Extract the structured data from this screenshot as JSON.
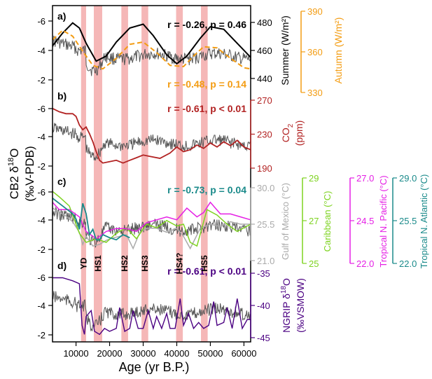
{
  "chart_data": {
    "type": "line",
    "x_axis": {
      "label": "Age (yr B.P.)",
      "range": [
        3000,
        62000
      ],
      "ticks": [
        10000,
        20000,
        30000,
        40000,
        50000,
        60000
      ],
      "tick_labels": [
        "10000",
        "20000",
        "30000",
        "40000",
        "50000",
        "60000"
      ]
    },
    "left_axis": {
      "label_main": "CB2 δ",
      "label_sup": "18",
      "label_end": "O",
      "label_line2": "(‰V-PDB)",
      "tick_labels": [
        "-6",
        "-4",
        "-2"
      ]
    },
    "shaded_events": [
      {
        "label": "YD",
        "start": 11500,
        "end": 13000
      },
      {
        "label": "HS1",
        "start": 15300,
        "end": 17800
      },
      {
        "label": "HS2",
        "start": 23500,
        "end": 25500
      },
      {
        "label": "HS3",
        "start": 29500,
        "end": 31500
      },
      {
        "label": "HS4?",
        "start": 39800,
        "end": 41800
      },
      {
        "label": "HS5",
        "start": 47200,
        "end": 49200
      }
    ],
    "panels": [
      {
        "id": "a",
        "label": "a)",
        "stats": [
          {
            "text": "r = -0.26, p = 0.46",
            "color": "#000000"
          },
          {
            "text": "r = -0.48, p = 0.14",
            "color": "#f39c12"
          }
        ],
        "right_axes": [
          {
            "label": "Summer (W/m²)",
            "color": "#000000",
            "tick_labels": [
              "480",
              "460",
              "440"
            ],
            "range": [
              430,
              485
            ]
          },
          {
            "label": "Autumn (W/m²)",
            "color": "#f39c12",
            "tick_labels": [
              "390",
              "360",
              "330"
            ],
            "range": [
              330,
              390
            ]
          }
        ],
        "series": [
          {
            "name": "Summer",
            "color": "#000000",
            "style": "solid",
            "x": [
              3000,
              6000,
              9000,
              11000,
              13000,
              16000,
              19000,
              22000,
              26000,
              30000,
              33000,
              37000,
              40000,
              43000,
              47000,
              50000,
              54000,
              58000,
              62000
            ],
            "y": [
              460,
              470,
              478,
              474,
              462,
              448,
              452,
              463,
              474,
              477,
              468,
              453,
              446,
              452,
              466,
              475,
              473,
              462,
              451
            ]
          },
          {
            "name": "Autumn",
            "color": "#f39c12",
            "style": "dashed",
            "x": [
              3000,
              6000,
              9000,
              12000,
              15000,
              18000,
              22000,
              26000,
              30000,
              34000,
              38000,
              42000,
              45000,
              48000,
              52000,
              56000,
              60000,
              62000
            ],
            "y": [
              368,
              376,
              371,
              358,
              346,
              343,
              352,
              364,
              366,
              357,
              346,
              345,
              354,
              362,
              361,
              352,
              344,
              343
            ]
          }
        ]
      },
      {
        "id": "b",
        "label": "b)",
        "stats": [
          {
            "text": "r = -0.61, p < 0.01",
            "color": "#b22222"
          }
        ],
        "right_axes": [
          {
            "label": "CO",
            "label_sub": "2",
            "label_line2": "(ppm)",
            "color": "#b22222",
            "tick_labels": [
              "270",
              "230",
              "190"
            ],
            "range": [
              175,
              275
            ]
          }
        ],
        "series": [
          {
            "name": "CO2",
            "color": "#b22222",
            "style": "solid",
            "x": [
              3000,
              5000,
              7000,
              9000,
              10000,
              11000,
              12000,
              13000,
              14000,
              15000,
              16000,
              17000,
              18000,
              20000,
              22000,
              24000,
              26000,
              28000,
              30000,
              32000,
              35000,
              38000,
              40000,
              42000,
              44000,
              46000,
              48000,
              50000,
              52000,
              54000,
              56000,
              58000,
              60000,
              62000
            ],
            "y": [
              270,
              265,
              262,
              262,
              258,
              245,
              238,
              242,
              232,
              220,
              205,
              192,
              188,
              190,
              192,
              188,
              192,
              196,
              200,
              198,
              195,
              203,
              212,
              205,
              208,
              215,
              210,
              218,
              212,
              220,
              214,
              222,
              212,
              208
            ]
          }
        ]
      },
      {
        "id": "c",
        "label": "c)",
        "stats": [
          {
            "text": "r = -0.73, p = 0.04",
            "color": "#1a8a8a"
          }
        ],
        "right_axes": [
          {
            "label": "Gulf of Mexico (°C)",
            "color": "#aaaaaa",
            "tick_labels": [
              "30.0",
              "25.5",
              "21.0"
            ],
            "range": [
              21,
              30
            ]
          },
          {
            "label": "Caribbean (°C)",
            "color": "#7ed321",
            "tick_labels": [
              "29",
              "27",
              "25"
            ],
            "range": [
              25,
              29
            ]
          },
          {
            "label": "Tropical N. Pacific (°C)",
            "color": "#e520e5",
            "tick_labels": [
              "27.0",
              "24.5",
              "22.0"
            ],
            "range": [
              22,
              27
            ]
          },
          {
            "label": "Tropical N. Atlantic (°C)",
            "color": "#1a8a8a",
            "tick_labels": [
              "29.0",
              "25.5",
              "22.0"
            ],
            "range": [
              22,
              29
            ]
          }
        ],
        "series": [
          {
            "name": "Gulf of Mexico",
            "color": "#aaaaaa",
            "x": [
              3000,
              5000,
              7000,
              9000,
              11000,
              12000,
              13000,
              15000,
              17000,
              19000,
              21000,
              23000,
              25000,
              27000,
              29000,
              31000,
              34000,
              37000,
              40000,
              42000,
              44000,
              47000,
              50000,
              53000,
              56000,
              59000,
              62000
            ],
            "y": [
              27.5,
              27.0,
              26.5,
              25.8,
              24.5,
              23.0,
              24.0,
              22.8,
              23.0,
              23.5,
              23.8,
              24.0,
              24.2,
              22.5,
              24.5,
              25.0,
              25.0,
              24.5,
              25.0,
              24.0,
              22.5,
              25.0,
              25.5,
              25.2,
              25.8,
              25.5,
              25.5
            ]
          },
          {
            "name": "Caribbean",
            "color": "#7ed321",
            "x": [
              3000,
              5000,
              8000,
              11000,
              13000,
              16000,
              19000,
              22000,
              25000,
              28000,
              31000,
              34000,
              37000,
              40000,
              42000,
              44000,
              46000,
              49000,
              52000,
              55000,
              58000,
              62000
            ],
            "y": [
              28.8,
              28.5,
              28.0,
              26.5,
              26.0,
              26.2,
              26.0,
              26.5,
              26.8,
              26.2,
              27.0,
              26.8,
              27.2,
              26.9,
              27.0,
              26.0,
              25.8,
              27.8,
              27.5,
              27.0,
              26.6,
              27.0
            ]
          },
          {
            "name": "Tropical N. Pacific",
            "color": "#e520e5",
            "x": [
              3000,
              5000,
              8000,
              11000,
              13000,
              16000,
              19000,
              22000,
              25000,
              28000,
              31000,
              34000,
              37000,
              40000,
              43000,
              46000,
              48000,
              50000,
              53000,
              56000,
              59000,
              62000
            ],
            "y": [
              26.0,
              25.5,
              25.5,
              25.0,
              24.0,
              23.5,
              24.0,
              24.2,
              24.2,
              24.0,
              24.6,
              24.8,
              25.0,
              24.8,
              25.6,
              25.0,
              25.3,
              26.0,
              25.2,
              25.2,
              25.0,
              24.8
            ]
          },
          {
            "name": "Tropical N. Atlantic",
            "color": "#1a8a8a",
            "x": [
              3000,
              5000,
              7000,
              9000,
              10000,
              11000,
              12000,
              13000,
              14000,
              15000,
              16000,
              17000,
              18000,
              20000,
              22000,
              24000,
              26000
            ],
            "y": [
              28.0,
              27.5,
              27.0,
              26.5,
              26.0,
              25.0,
              27.5,
              26.5,
              24.5,
              25.0,
              24.0,
              24.0,
              24.5,
              24.2,
              24.0,
              24.5,
              24.2
            ]
          }
        ]
      },
      {
        "id": "d",
        "label": "d)",
        "stats": [
          {
            "text": "r = -0.61, p < 0.01",
            "color": "#4b0082"
          }
        ],
        "right_axes": [
          {
            "label": "NGRIP δ",
            "label_sup": "18",
            "label_end": "O",
            "label_line2": "(‰VSMOW)",
            "color": "#4b0082",
            "tick_labels": [
              "-35",
              "-40",
              "-45"
            ],
            "range": [
              -46,
              -34
            ]
          }
        ],
        "series": [
          {
            "name": "NGRIP",
            "color": "#4b0082",
            "x": [
              3000,
              6000,
              9000,
              11000,
              11800,
              12500,
              13000,
              14500,
              15500,
              17000,
              18500,
              20000,
              22000,
              23000,
              24500,
              26000,
              27000,
              28500,
              30000,
              31500,
              33000,
              34000,
              35500,
              37000,
              38000,
              39500,
              41000,
              42000,
              43500,
              45000,
              46500,
              48000,
              49500,
              51000,
              52000,
              54000,
              55000,
              56500,
              58000,
              59500,
              61000,
              62000
            ],
            "y": [
              -35,
              -35,
              -35.5,
              -36,
              -43,
              -44.5,
              -41.5,
              -40.5,
              -44,
              -44.5,
              -43.5,
              -44,
              -43.5,
              -40,
              -44,
              -43.5,
              -40.5,
              -43.5,
              -43.5,
              -40.5,
              -43.5,
              -41.5,
              -43.5,
              -41,
              -43.5,
              -43.5,
              -38.5,
              -43,
              -41,
              -43.5,
              -42.5,
              -43.5,
              -43,
              -39,
              -43,
              -42.5,
              -40,
              -43.5,
              -38.5,
              -43.5,
              -42,
              -42
            ]
          }
        ]
      }
    ],
    "cb2_series_color": "#555555"
  }
}
